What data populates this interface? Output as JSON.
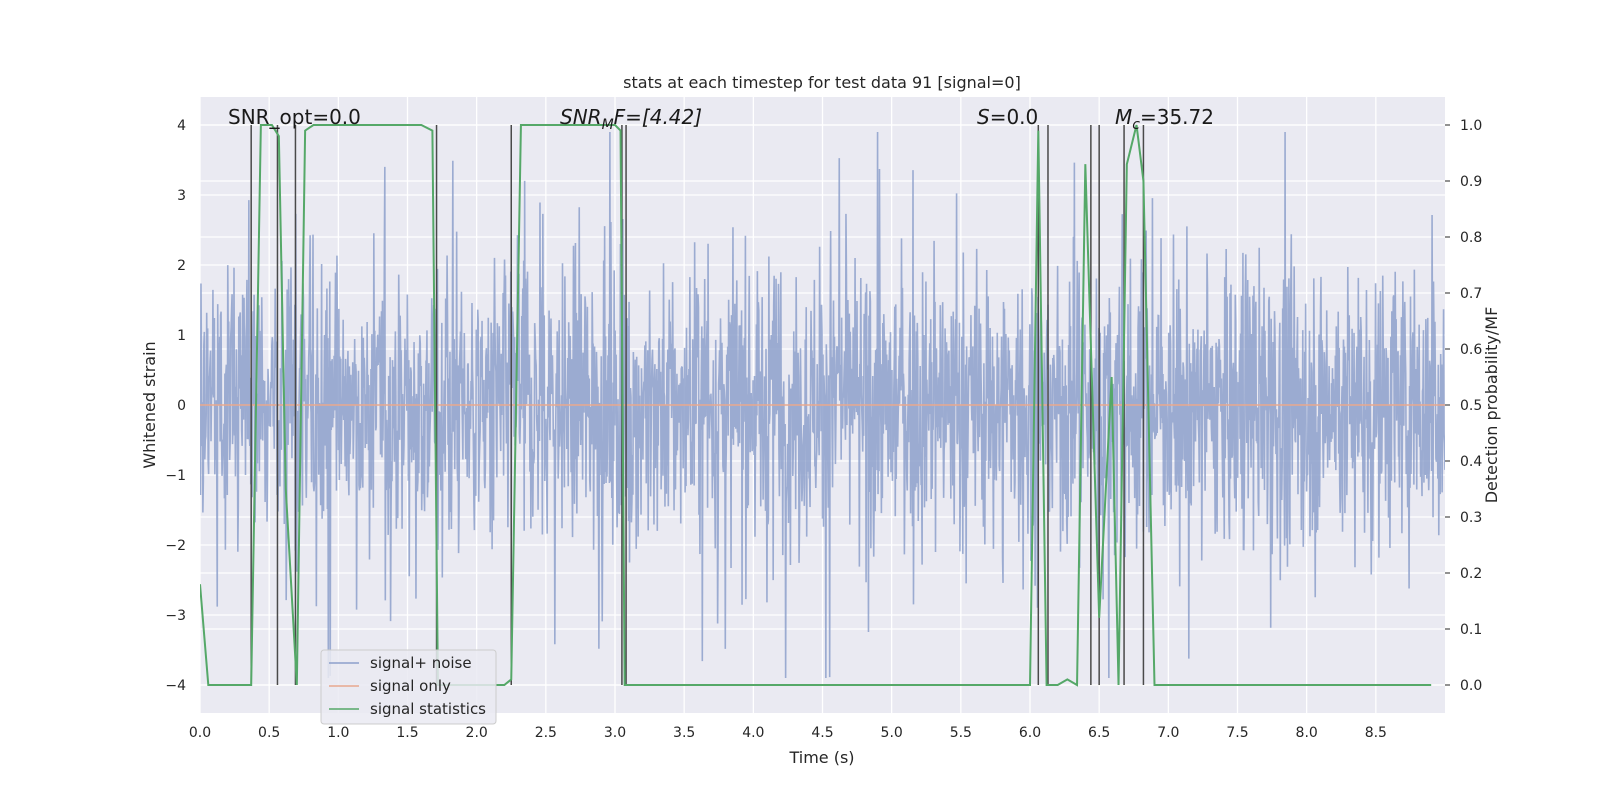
{
  "chart_data": {
    "type": "line",
    "title": "stats at each timestep for test data 91 [signal=0]",
    "xlabel": "Time (s)",
    "ylabel_left": "Whitened strain",
    "ylabel_right": "Detection probability/MF",
    "xlim": [
      0,
      9.0
    ],
    "ylim_left": [
      -4.4,
      4.4
    ],
    "ylim_right": [
      -0.05,
      1.05
    ],
    "x_ticks": [
      "0.0",
      "0.5",
      "1.0",
      "1.5",
      "2.0",
      "2.5",
      "3.0",
      "3.5",
      "4.0",
      "4.5",
      "5.0",
      "5.5",
      "6.0",
      "6.5",
      "7.0",
      "7.5",
      "8.0",
      "8.5"
    ],
    "y_ticks_left": [
      "−4",
      "−3",
      "−2",
      "−1",
      "0",
      "1",
      "2",
      "3",
      "4"
    ],
    "y_ticks_right": [
      "0.0",
      "0.1",
      "0.2",
      "0.3",
      "0.4",
      "0.5",
      "0.6",
      "0.7",
      "0.8",
      "0.9",
      "1.0"
    ],
    "grid": true,
    "legend_position": "lower-left",
    "annotations": {
      "snr_opt": "SNR_opt=0.0",
      "snr_mf_main": "SNR",
      "snr_mf_sub": "M",
      "snr_mf_rest": "F=[4.42]",
      "s_main": "S",
      "s_rest": "=0.0",
      "mc_main": "M",
      "mc_sub": "c",
      "mc_rest": "=35.72"
    },
    "series": [
      {
        "name": "signal+ noise",
        "color": "#8da0cb",
        "axis": "left",
        "note_values": "dense whitened-noise trace, bulk amplitude about ±1.6 with peaks to about ±3.9"
      },
      {
        "name": "signal only",
        "color": "#e8a88e",
        "axis": "left",
        "x": [
          0,
          9.0
        ],
        "values": [
          0,
          0
        ]
      },
      {
        "name": "signal statistics",
        "color": "#55a868",
        "axis": "right",
        "x": [
          0.0,
          0.06,
          0.12,
          0.2,
          0.3,
          0.37,
          0.44,
          0.52,
          0.57,
          0.62,
          0.7,
          0.76,
          0.82,
          1.0,
          1.3,
          1.6,
          1.68,
          1.72,
          1.8,
          2.0,
          2.1,
          2.2,
          2.25,
          2.32,
          2.5,
          2.8,
          3.0,
          3.04,
          3.07,
          3.12,
          3.2,
          3.5,
          3.8,
          3.95,
          4.1,
          4.5,
          5.0,
          5.3,
          5.6,
          5.7,
          5.8,
          6.0,
          6.06,
          6.12,
          6.2,
          6.27,
          6.34,
          6.4,
          6.5,
          6.59,
          6.64,
          6.7,
          6.77,
          6.82,
          6.9,
          6.97,
          7.1,
          7.5,
          8.0,
          8.5,
          8.9
        ],
        "values": [
          0.18,
          0.0,
          0.0,
          0.0,
          0.0,
          0.0,
          1.0,
          1.0,
          0.98,
          0.35,
          0.0,
          0.99,
          1.0,
          1.0,
          1.0,
          1.0,
          0.99,
          0.0,
          0.0,
          0.0,
          0.0,
          0.0,
          0.01,
          1.0,
          1.0,
          1.0,
          1.0,
          0.99,
          0.0,
          0.0,
          0.0,
          0.0,
          0.0,
          0.0,
          0.0,
          0.0,
          0.0,
          0.0,
          0.0,
          0.0,
          0.0,
          0.0,
          0.99,
          0.0,
          0.0,
          0.01,
          0.0,
          0.93,
          0.12,
          0.55,
          0.0,
          0.93,
          1.0,
          0.9,
          0.0,
          0.0,
          0.0,
          0.0,
          0.0,
          0.0,
          0.0
        ]
      }
    ],
    "vertical_markers": {
      "color": "#4a4a4a",
      "x": [
        0.37,
        0.56,
        0.69,
        1.71,
        2.25,
        3.05,
        3.08,
        6.06,
        6.13,
        6.44,
        6.5,
        6.68,
        6.82
      ]
    }
  }
}
